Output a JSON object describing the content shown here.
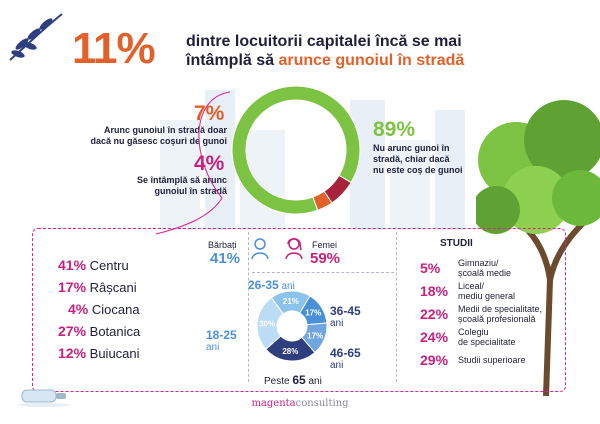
{
  "hero": {
    "percent": "11%",
    "line1": "dintre locuitorii capitalei încă se mai",
    "line2_a": "întâmplă să ",
    "line2_b": "arunce gunoiul în stradă"
  },
  "main_chart": {
    "label_89_pct": "89%",
    "label_89_text": [
      "Nu arunc gunoi în",
      "stradă, chiar dacă",
      "nu este coș de gunoi"
    ],
    "label_7_pct": "7%",
    "label_7_text": [
      "Arunc gunoiul în stradă doar",
      "dacă nu găsesc coșuri de gunoi"
    ],
    "label_4_pct": "4%",
    "label_4_text": [
      "Se întâmplă să arunc",
      "gunoiul în stradă"
    ]
  },
  "districts": [
    {
      "pct": "41%",
      "name": "Centru"
    },
    {
      "pct": "17%",
      "name": "Râșcani"
    },
    {
      "pct": "4%",
      "name": "Ciocana"
    },
    {
      "pct": "27%",
      "name": "Botanica"
    },
    {
      "pct": "12%",
      "name": "Buiucani"
    }
  ],
  "gender": {
    "men_label": "Bărbați",
    "men_pct": "41%",
    "women_label": "Femei",
    "women_pct": "59%"
  },
  "age": {
    "unit": "ani",
    "top": "26-35",
    "right_top": "36-45",
    "right_bottom": "46-65",
    "left": "18-25",
    "bottom_prefix": "Peste ",
    "bottom_value": "65",
    "bottom_suffix": " ani",
    "slice_labels": [
      "21%",
      "17%",
      "17%",
      "28%",
      "30%"
    ]
  },
  "studies": {
    "title": "STUDII",
    "items": [
      {
        "pct": "5%",
        "text": [
          "Gimnaziu/",
          "școală medie"
        ]
      },
      {
        "pct": "18%",
        "text": [
          "Liceal/",
          "mediu general"
        ]
      },
      {
        "pct": "22%",
        "text": [
          "Medii de specialitate,",
          "școală profesională"
        ]
      },
      {
        "pct": "24%",
        "text": [
          "Colegiu",
          "de specialitate"
        ]
      },
      {
        "pct": "29%",
        "text": [
          "Studii superioare"
        ]
      }
    ]
  },
  "footer": {
    "brand_a": "magenta",
    "brand_b": "consulting"
  },
  "colors": {
    "green": "#7cc243",
    "dark_red": "#a7233a",
    "orange": "#e2612a",
    "magenta": "#c8207e",
    "blue": "#4a90d6",
    "light_blue": "#8cc3ee",
    "navy": "#2f3e7e"
  },
  "chart_data": [
    {
      "type": "pie",
      "donut": true,
      "categories": [
        "Nu arunc gunoi în stradă, chiar dacă nu este coș de gunoi",
        "Arunc gunoiul în stradă doar dacă nu găsesc coșuri de gunoi",
        "Se întâmplă să arunc gunoiul în stradă"
      ],
      "values": [
        89,
        7,
        4
      ],
      "colors": [
        "#7cc243",
        "#a7233a",
        "#e2612a"
      ]
    },
    {
      "type": "pie",
      "donut": true,
      "categories": [
        "26-35 ani",
        "36-45 ani",
        "46-65 ani",
        "Peste 65 ani",
        "18-25 ani"
      ],
      "values": [
        21,
        17,
        17,
        28,
        30
      ],
      "colors": [
        "#8cc3ee",
        "#4a90d6",
        "#6fa6df",
        "#2f3e7e",
        "#bcdcf5"
      ]
    }
  ]
}
